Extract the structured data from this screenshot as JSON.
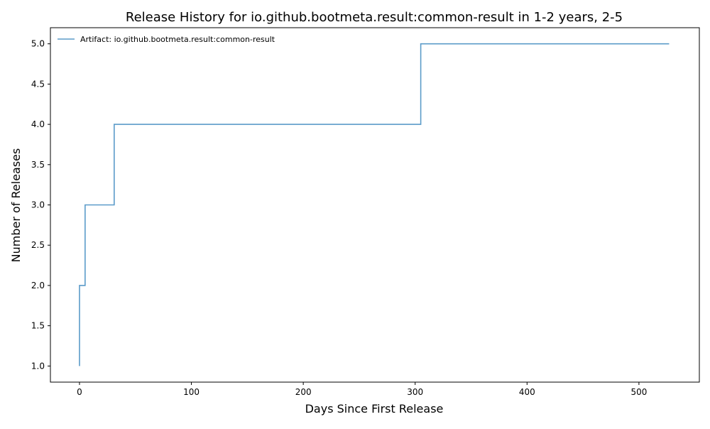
{
  "chart_data": {
    "type": "line",
    "title": "Release History for io.github.bootmeta.result:common-result in 1-2 years, 2-5",
    "xlabel": "Days Since First Release",
    "ylabel": "Number of Releases",
    "xlim": [
      -26,
      554
    ],
    "ylim": [
      0.8,
      5.2
    ],
    "xticks": [
      0,
      100,
      200,
      300,
      400,
      500
    ],
    "yticks": [
      1.0,
      1.5,
      2.0,
      2.5,
      3.0,
      3.5,
      4.0,
      4.5,
      5.0
    ],
    "xtick_labels": [
      "0",
      "100",
      "200",
      "300",
      "400",
      "500"
    ],
    "ytick_labels": [
      "1.0",
      "1.5",
      "2.0",
      "2.5",
      "3.0",
      "3.5",
      "4.0",
      "4.5",
      "5.0"
    ],
    "step": "post",
    "grid": false,
    "legend_position": "top-left",
    "series": [
      {
        "name": "Artifact: io.github.bootmeta.result:common-result",
        "color": "#5b9bc9",
        "x": [
          0,
          0,
          5,
          31,
          305,
          527
        ],
        "y": [
          1,
          2,
          3,
          4,
          5,
          5
        ]
      }
    ]
  }
}
